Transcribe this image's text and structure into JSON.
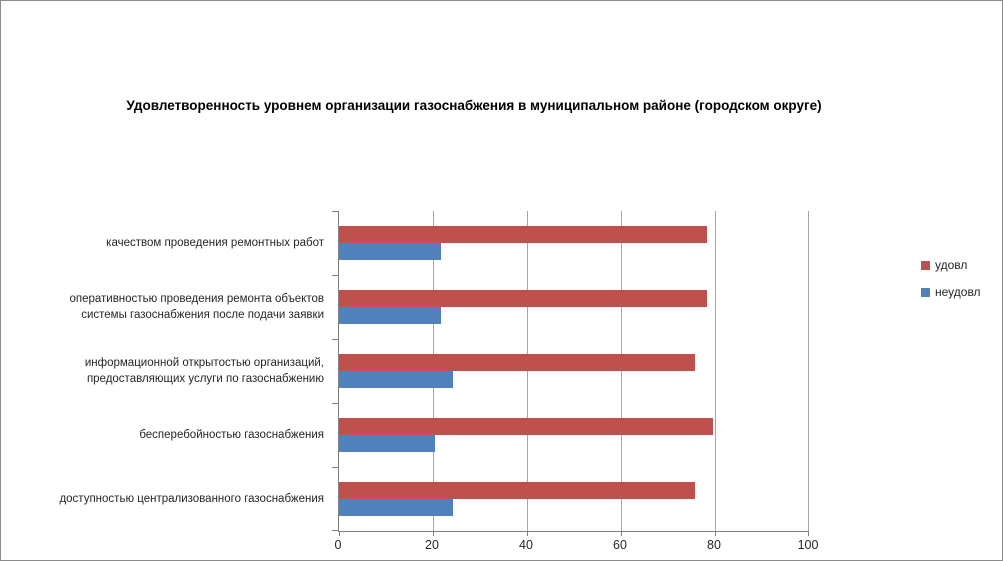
{
  "chart_data": {
    "type": "bar",
    "orientation": "horizontal",
    "title": "Удовлетворенность уровнем организации газоснабжения в муниципальном районе (городском округе)",
    "categories": [
      "качеством проведения ремонтных работ",
      "оперативностью проведения ремонта объектов\nсистемы газоснабжения после подачи заявки",
      "информационной открытостью организаций,\nпредоставляющих услуги по газоснабжению",
      "бесперебойностью газоснабжения",
      "доступностью централизованного газоснабжения"
    ],
    "series": [
      {
        "name": "удовл",
        "slug": "satisfied",
        "color": "#C0504D",
        "values": [
          78.3,
          78.3,
          75.7,
          79.5,
          75.7
        ]
      },
      {
        "name": "неудовл",
        "slug": "unsatisfied",
        "color": "#4F81BD",
        "values": [
          21.7,
          21.7,
          24.3,
          20.5,
          24.3
        ]
      }
    ],
    "xlim": [
      0,
      100
    ],
    "xticks": [
      0,
      20,
      40,
      60,
      80,
      100
    ],
    "grid": true,
    "legend_position": "right",
    "colors": {
      "gridline": "#a6a6a6",
      "axis": "#808080",
      "text": "#262626",
      "background": "#ffffff",
      "frame_border": "#8c8c8c"
    }
  }
}
